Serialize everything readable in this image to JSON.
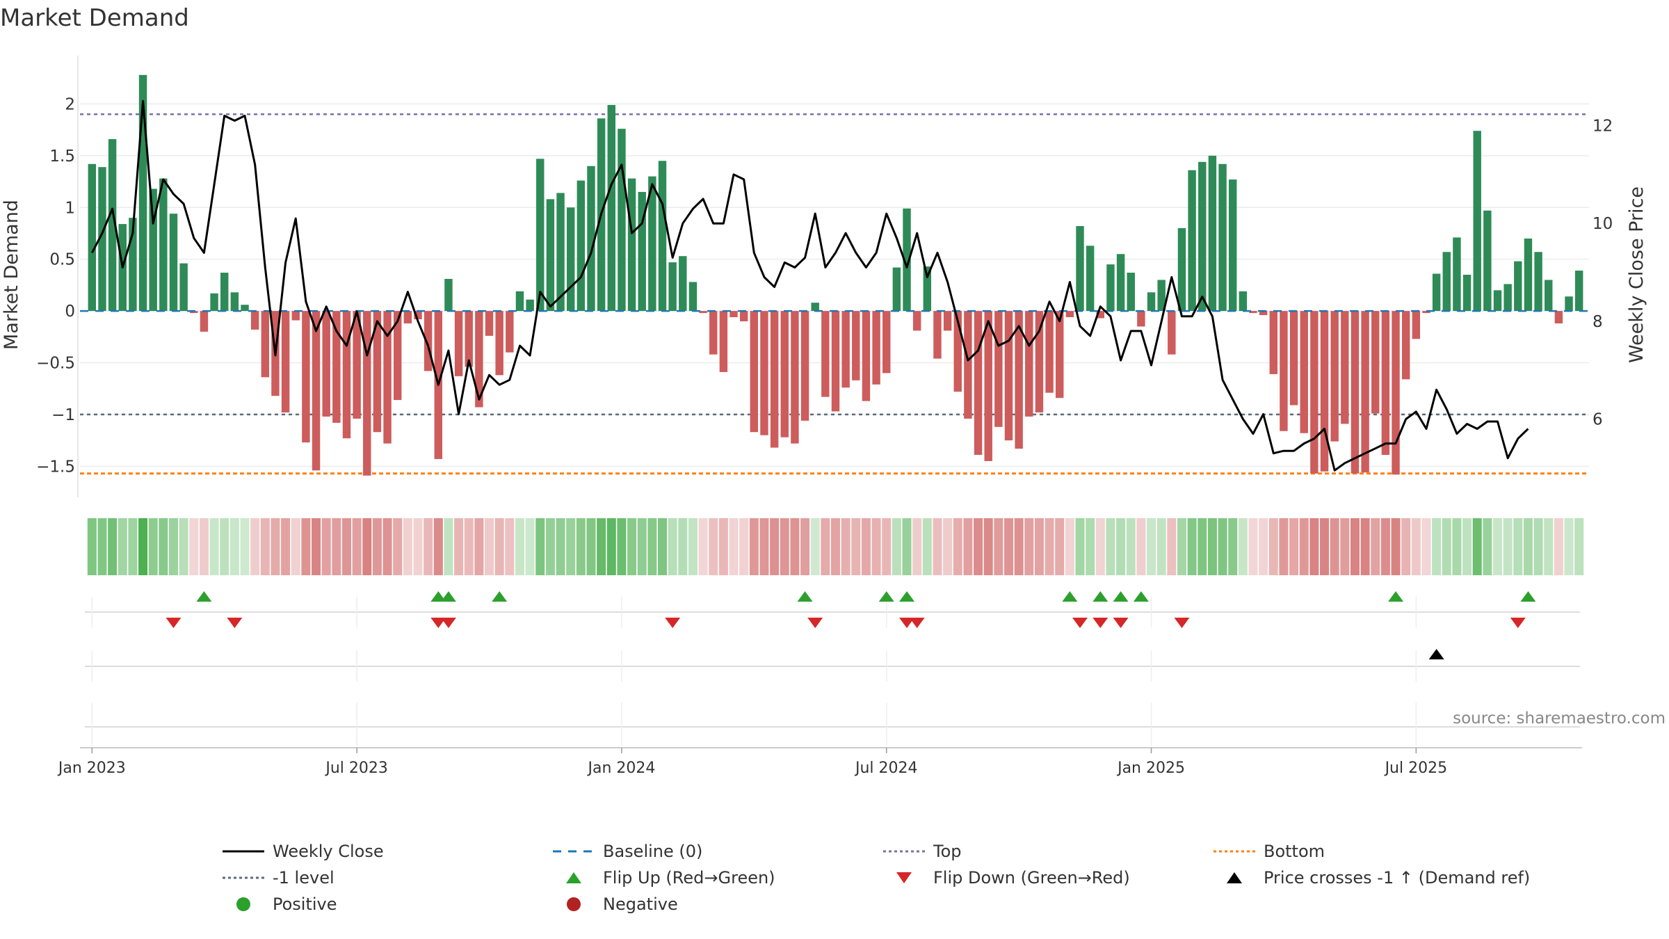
{
  "chart_data": {
    "type": "bar",
    "title": "Market Demand",
    "ylabel": "Market Demand",
    "y2label": "Weekly Close Price",
    "source": "source: sharemaestro.com",
    "ylim": [
      -1.8,
      2.5
    ],
    "y2lim": [
      4.4,
      13.5
    ],
    "yticks": [
      2,
      1.5,
      1,
      0.5,
      0,
      -0.5,
      -1,
      -1.5
    ],
    "ytick_labels": [
      "2",
      "1.5",
      "1",
      "0.5",
      "0",
      "−0.5",
      "−1",
      "−1.5"
    ],
    "y2ticks": [
      12,
      10,
      8,
      6
    ],
    "y2tick_labels": [
      "12",
      "10",
      "8",
      "6"
    ],
    "xticks": [
      0,
      26,
      52,
      78,
      104,
      130
    ],
    "xtick_labels": [
      "Jan 2023",
      "Jul 2023",
      "Jan 2024",
      "Jul 2024",
      "Jan 2025",
      "Jul 2025"
    ],
    "top_level": 1.9,
    "minus1_level": -1,
    "bottom_level": -1.57,
    "demand": [
      1.42,
      1.39,
      1.66,
      0.84,
      0.9,
      2.28,
      1.18,
      1.28,
      0.94,
      0.46,
      -0.02,
      -0.2,
      0.17,
      0.37,
      0.18,
      0.06,
      -0.18,
      -0.64,
      -0.82,
      -0.98,
      -0.09,
      -1.27,
      -1.54,
      -1.02,
      -1.08,
      -1.23,
      -1.04,
      -1.59,
      -1.17,
      -1.28,
      -0.86,
      -0.12,
      -0.08,
      -0.58,
      -1.43,
      0.31,
      -0.63,
      -0.54,
      -0.93,
      -0.24,
      -0.62,
      -0.4,
      0.19,
      0.11,
      1.47,
      1.08,
      1.14,
      1.0,
      1.26,
      1.4,
      1.86,
      1.99,
      1.76,
      1.28,
      1.15,
      1.3,
      1.45,
      0.47,
      0.53,
      0.28,
      -0.02,
      -0.42,
      -0.59,
      -0.06,
      -0.1,
      -1.17,
      -1.2,
      -1.32,
      -1.22,
      -1.28,
      -1.06,
      0.08,
      -0.83,
      -0.97,
      -0.74,
      -0.67,
      -0.87,
      -0.71,
      -0.6,
      0.42,
      0.99,
      -0.19,
      0.43,
      -0.46,
      -0.19,
      -0.78,
      -1.04,
      -1.39,
      -1.45,
      -1.12,
      -1.25,
      -1.33,
      -1.02,
      -0.98,
      -0.79,
      -0.84,
      -0.06,
      0.82,
      0.63,
      -0.07,
      0.45,
      0.55,
      0.37,
      -0.15,
      0.18,
      0.3,
      -0.42,
      0.8,
      1.36,
      1.44,
      1.5,
      1.42,
      1.27,
      0.19,
      -0.02,
      -0.04,
      -0.61,
      -1.16,
      -0.91,
      -1.18,
      -1.57,
      -1.55,
      -1.26,
      -1.09,
      -1.57,
      -1.56,
      -0.99,
      -1.39,
      -1.58,
      -0.66,
      -0.27,
      -0.02,
      0.36,
      0.57,
      0.71,
      0.35,
      1.74,
      0.97,
      0.2,
      0.26,
      0.48,
      0.7,
      0.57,
      0.3,
      -0.12,
      0.14,
      0.39
    ],
    "weekly_close": [
      9.4,
      9.8,
      10.3,
      9.1,
      9.8,
      12.5,
      10.0,
      10.9,
      10.6,
      10.4,
      9.7,
      9.4,
      10.8,
      12.2,
      12.1,
      12.2,
      11.2,
      9.1,
      7.3,
      9.2,
      10.1,
      8.4,
      7.8,
      8.3,
      7.8,
      7.5,
      8.2,
      7.3,
      8.0,
      7.7,
      8.0,
      8.6,
      8.0,
      7.5,
      6.7,
      7.4,
      6.1,
      7.2,
      6.4,
      6.9,
      6.7,
      6.8,
      7.5,
      7.3,
      8.6,
      8.3,
      8.5,
      8.7,
      8.9,
      9.4,
      10.2,
      10.8,
      11.2,
      9.8,
      10.0,
      10.8,
      10.4,
      9.3,
      10.0,
      10.3,
      10.5,
      10.0,
      10.0,
      11.0,
      10.9,
      9.4,
      8.9,
      8.7,
      9.2,
      9.1,
      9.3,
      10.2,
      9.1,
      9.4,
      9.8,
      9.4,
      9.1,
      9.4,
      10.2,
      9.7,
      9.1,
      9.8,
      8.9,
      9.4,
      8.8,
      8.0,
      7.2,
      7.4,
      8.0,
      7.5,
      7.6,
      7.9,
      7.5,
      7.8,
      8.4,
      8.0,
      8.8,
      7.9,
      7.7,
      8.3,
      8.1,
      7.2,
      7.8,
      7.8,
      7.1,
      8.0,
      8.9,
      8.1,
      8.1,
      8.5,
      8.1,
      6.8,
      6.4,
      6.0,
      5.7,
      6.1,
      5.3,
      5.35,
      5.35,
      5.5,
      5.6,
      5.8,
      4.95,
      5.1,
      5.2,
      5.3,
      5.4,
      5.5,
      5.5,
      6.0,
      6.15,
      5.8,
      6.6,
      6.2,
      5.7,
      5.9,
      5.8,
      5.95,
      5.95,
      5.2,
      5.6,
      5.8
    ],
    "flip_up_weeks": [
      11,
      34,
      35,
      40,
      70,
      78,
      80,
      96,
      99,
      101,
      103,
      128,
      141
    ],
    "flip_down_weeks": [
      8,
      14,
      34,
      35,
      57,
      71,
      80,
      81,
      97,
      99,
      101,
      107,
      140
    ],
    "price_cross_weeks": [
      132
    ],
    "legend": [
      [
        "Weekly Close",
        "Baseline (0)",
        "Top",
        "Bottom"
      ],
      [
        "-1 level",
        "Flip Up (Red→Green)",
        "Flip Down (Green→Red)",
        "Price crosses -1 ↑ (Demand ref)"
      ],
      [
        "Positive",
        "Negative"
      ]
    ],
    "colors": {
      "positive_bar": "#2e8b57",
      "negative_bar": "#cd5c5c",
      "price_line": "#000000",
      "baseline": "#1f77b4",
      "top": "#7b6fa8",
      "minus1": "#5a6b7a",
      "bottom": "#ff7f0e",
      "flip_up": "#2ca02c",
      "flip_down": "#d62728",
      "positive_dot": "#2ca02c",
      "negative_dot": "#b22222"
    }
  }
}
